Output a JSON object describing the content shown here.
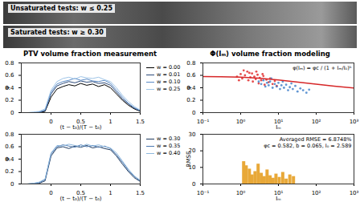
{
  "images": [
    {
      "label": "Unsaturated tests: w ≤ 0.25"
    },
    {
      "label": "Saturated tests: w ≥ 0.30"
    }
  ],
  "headings": [
    "PTV volume fraction measurement",
    "Φ(Iₘ) volume fraction modeling"
  ],
  "chart_data": [
    {
      "type": "line",
      "x": [
        -0.5,
        -0.4,
        -0.3,
        -0.2,
        -0.1,
        0,
        0.1,
        0.2,
        0.3,
        0.4,
        0.5,
        0.6,
        0.7,
        0.8,
        0.9,
        1,
        1.1,
        1.2,
        1.3,
        1.4,
        1.5
      ],
      "series": [
        {
          "name": "w = 0.00",
          "color": "#000000",
          "values": [
            0,
            0,
            0,
            0,
            0.02,
            0.25,
            0.38,
            0.42,
            0.45,
            0.43,
            0.47,
            0.44,
            0.46,
            0.42,
            0.45,
            0.4,
            0.3,
            0.2,
            0.12,
            0.06,
            0.02
          ]
        },
        {
          "name": "w = 0.01",
          "color": "#2c4a7a",
          "values": [
            0,
            0,
            0,
            0.01,
            0.03,
            0.3,
            0.43,
            0.47,
            0.5,
            0.48,
            0.51,
            0.49,
            0.5,
            0.47,
            0.48,
            0.44,
            0.33,
            0.22,
            0.14,
            0.07,
            0.03
          ]
        },
        {
          "name": "w = 0.10",
          "color": "#5a8ac6",
          "values": [
            0,
            0,
            0,
            0.01,
            0.04,
            0.33,
            0.46,
            0.5,
            0.52,
            0.55,
            0.52,
            0.54,
            0.51,
            0.5,
            0.52,
            0.47,
            0.36,
            0.25,
            0.15,
            0.08,
            0.03
          ]
        },
        {
          "name": "w = 0.25",
          "color": "#9fc5e8",
          "values": [
            0,
            0,
            0.01,
            0.02,
            0.06,
            0.36,
            0.5,
            0.55,
            0.57,
            0.54,
            0.58,
            0.56,
            0.55,
            0.57,
            0.53,
            0.5,
            0.4,
            0.28,
            0.18,
            0.1,
            0.04
          ]
        }
      ],
      "xlabel": "(t − t₀)/(T − t₀)",
      "ylabel": "φ",
      "xlim": [
        -0.5,
        1.5
      ],
      "xticks": [
        0,
        0.5,
        1,
        1.5
      ],
      "ylim": [
        0,
        0.8
      ],
      "yticks": [
        0,
        0.2,
        0.4,
        0.6,
        0.8
      ],
      "legend": "right"
    },
    {
      "type": "line",
      "x": [
        -0.5,
        -0.4,
        -0.3,
        -0.2,
        -0.1,
        0,
        0.1,
        0.2,
        0.3,
        0.4,
        0.5,
        0.6,
        0.7,
        0.8,
        0.9,
        1,
        1.1,
        1.2,
        1.3,
        1.4,
        1.5
      ],
      "series": [
        {
          "name": "w = 0.30",
          "color": "#1f3a5f",
          "values": [
            0,
            0,
            0,
            0.01,
            0.05,
            0.45,
            0.58,
            0.6,
            0.57,
            0.61,
            0.59,
            0.62,
            0.58,
            0.6,
            0.57,
            0.55,
            0.45,
            0.32,
            0.2,
            0.1,
            0.04
          ]
        },
        {
          "name": "w = 0.35",
          "color": "#4a78b0",
          "values": [
            0,
            0,
            0.01,
            0.02,
            0.07,
            0.48,
            0.6,
            0.63,
            0.61,
            0.59,
            0.63,
            0.6,
            0.62,
            0.59,
            0.61,
            0.57,
            0.47,
            0.35,
            0.22,
            0.12,
            0.05
          ]
        },
        {
          "name": "w = 0.40",
          "color": "#8fb8de",
          "values": [
            0,
            0,
            0.01,
            0.03,
            0.08,
            0.5,
            0.62,
            0.61,
            0.64,
            0.62,
            0.6,
            0.64,
            0.61,
            0.63,
            0.6,
            0.58,
            0.5,
            0.37,
            0.24,
            0.13,
            0.06
          ]
        }
      ],
      "xlabel": "(t − t₀)/(T − t₀)",
      "ylabel": "φ",
      "xlim": [
        -0.5,
        1.5
      ],
      "xticks": [
        0,
        0.5,
        1,
        1.5
      ],
      "ylim": [
        0,
        0.8
      ],
      "yticks": [
        0,
        0.2,
        0.4,
        0.6,
        0.8
      ],
      "legend": "right"
    },
    {
      "type": "scatter",
      "series": [
        {
          "type": "scatter",
          "color": "#e02020",
          "x": [
            0.8,
            1.0,
            1.1,
            1.3,
            1.5,
            1.6,
            1.8,
            2.0,
            2.1,
            2.3,
            2.5,
            2.8,
            3.0,
            3.2,
            3.5,
            4.0,
            4.3,
            4.8,
            5.5,
            6.0,
            7.0,
            8.0,
            9.0,
            1.2,
            1.7,
            2.6,
            0.9,
            3.8
          ],
          "y": [
            0.58,
            0.62,
            0.55,
            0.6,
            0.66,
            0.52,
            0.57,
            0.63,
            0.5,
            0.58,
            0.54,
            0.61,
            0.47,
            0.56,
            0.52,
            0.59,
            0.45,
            0.53,
            0.49,
            0.55,
            0.46,
            0.51,
            0.43,
            0.68,
            0.64,
            0.66,
            0.52,
            0.62
          ]
        },
        {
          "type": "scatter",
          "color": "#3a7cc8",
          "x": [
            3,
            3.5,
            4,
            4.5,
            5,
            5.5,
            6,
            7,
            8,
            9,
            10,
            11,
            12,
            14,
            16,
            18,
            20,
            24,
            28,
            32,
            38,
            45,
            55,
            65,
            6.5,
            13,
            22
          ],
          "y": [
            0.5,
            0.46,
            0.52,
            0.42,
            0.48,
            0.44,
            0.5,
            0.4,
            0.46,
            0.42,
            0.48,
            0.38,
            0.44,
            0.4,
            0.45,
            0.36,
            0.41,
            0.38,
            0.43,
            0.34,
            0.39,
            0.36,
            0.32,
            0.37,
            0.55,
            0.5,
            0.47
          ]
        },
        {
          "type": "line",
          "color": "#d62728",
          "x": [
            0.1,
            0.3,
            1,
            3,
            10,
            30,
            100,
            300,
            1000
          ],
          "y": [
            0.581,
            0.578,
            0.57,
            0.554,
            0.525,
            0.494,
            0.458,
            0.427,
            0.396
          ]
        }
      ],
      "annotation": "φ(Iₘ) = φc / (1 + Iₘ/I₀)ᵇ",
      "xlabel": "Iₘ",
      "ylabel": "φ",
      "log": "x",
      "xlim": [
        0.1,
        1000
      ],
      "xticks": [
        {
          "value": 0.1,
          "label": "10⁻¹"
        },
        {
          "value": 1,
          "label": "10⁰"
        },
        {
          "value": 10,
          "label": "10¹"
        },
        {
          "value": 100,
          "label": "10²"
        },
        {
          "value": 1000,
          "label": "10³"
        }
      ],
      "ylim": [
        0,
        0.8
      ],
      "yticks": [
        0,
        0.2,
        0.4,
        0.6,
        0.8
      ]
    },
    {
      "type": "bar",
      "x": [
        1.2,
        1.4,
        1.7,
        2.0,
        2.4,
        2.9,
        3.5,
        4.2,
        5.0,
        6.0,
        7.2,
        8.6,
        10.5,
        13,
        16,
        20,
        25
      ],
      "values": [
        13.5,
        11.0,
        9.0,
        5.5,
        7.5,
        12.0,
        6.5,
        4.5,
        8.5,
        5.0,
        3.5,
        6.0,
        4.0,
        7.0,
        3.0,
        5.5,
        4.5
      ],
      "color": "#e8a838",
      "annotation": [
        "Averaged RMSE = 6.8748%",
        "φc = 0.582, b = 0.065, I₀ = 2.589"
      ],
      "xlabel": "Iₘ",
      "ylabel": "RMSE",
      "log": "x",
      "xlim": [
        0.1,
        1000
      ],
      "xticks": [
        {
          "value": 0.1,
          "label": "10⁻¹"
        },
        {
          "value": 1,
          "label": "10⁰"
        },
        {
          "value": 10,
          "label": "10¹"
        },
        {
          "value": 100,
          "label": "10²"
        },
        {
          "value": 1000,
          "label": "10³"
        }
      ],
      "ylim": [
        0,
        30
      ],
      "yticks": [
        0,
        10,
        20,
        30
      ]
    }
  ]
}
